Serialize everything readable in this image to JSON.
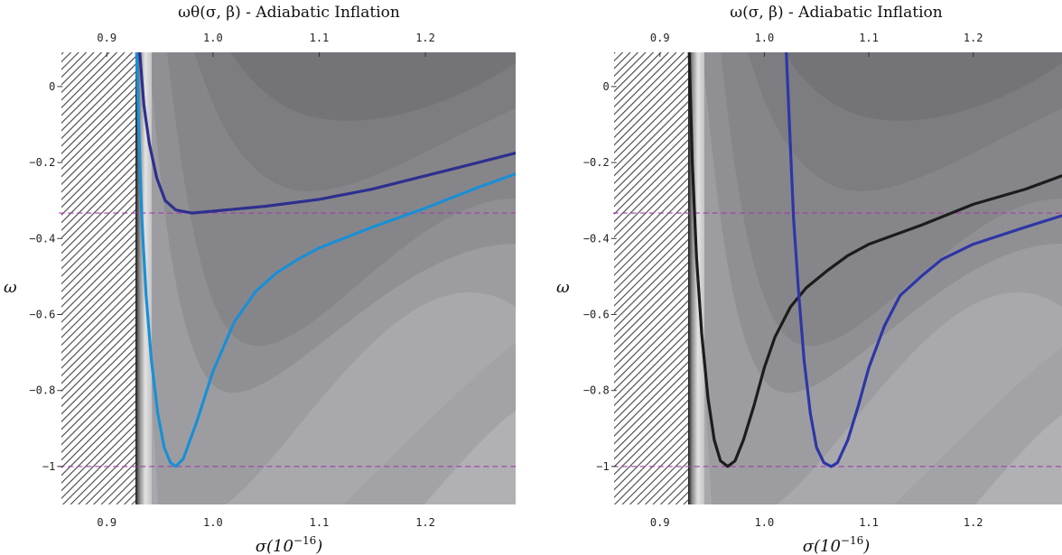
{
  "chart_data": [
    {
      "type": "line",
      "title": "ωθ(σ, β) - Adiabatic Inflation",
      "xlabel": "σ(10",
      "xlabel_exp": "−16",
      "xlabel_close": ")",
      "ylabel": "ω",
      "xlim": [
        0.855,
        1.285
      ],
      "ylim": [
        -1.1,
        0.09
      ],
      "xticks": [
        {
          "value": 0.9,
          "label": "0.9"
        },
        {
          "value": 1.0,
          "label": "1.0"
        },
        {
          "value": 1.1,
          "label": "1.1"
        },
        {
          "value": 1.2,
          "label": "1.2"
        }
      ],
      "yticks": [
        {
          "value": 0.0,
          "label": "0"
        },
        {
          "value": -0.2,
          "label": "−0.2"
        },
        {
          "value": -0.4,
          "label": "−0.4"
        },
        {
          "value": -0.6,
          "label": "−0.6"
        },
        {
          "value": -0.8,
          "label": "−0.8"
        },
        {
          "value": -1.0,
          "label": "−1"
        }
      ],
      "excluded_region_x_max": 0.927,
      "reference_lines": [
        -0.333,
        -1.0
      ],
      "series": [
        {
          "color": "#2d2f8f",
          "points": [
            [
              0.931,
              0.09
            ],
            [
              0.935,
              -0.05
            ],
            [
              0.94,
              -0.15
            ],
            [
              0.947,
              -0.24
            ],
            [
              0.955,
              -0.3
            ],
            [
              0.965,
              -0.325
            ],
            [
              0.98,
              -0.333
            ],
            [
              1.0,
              -0.328
            ],
            [
              1.05,
              -0.315
            ],
            [
              1.1,
              -0.297
            ],
            [
              1.15,
              -0.27
            ],
            [
              1.2,
              -0.235
            ],
            [
              1.25,
              -0.2
            ],
            [
              1.285,
              -0.175
            ]
          ]
        },
        {
          "color": "#1a8fd6",
          "points": [
            [
              0.928,
              0.09
            ],
            [
              0.93,
              -0.1
            ],
            [
              0.933,
              -0.35
            ],
            [
              0.937,
              -0.55
            ],
            [
              0.942,
              -0.72
            ],
            [
              0.948,
              -0.86
            ],
            [
              0.954,
              -0.95
            ],
            [
              0.96,
              -0.99
            ],
            [
              0.965,
              -1.0
            ],
            [
              0.972,
              -0.98
            ],
            [
              0.985,
              -0.88
            ],
            [
              1.0,
              -0.75
            ],
            [
              1.02,
              -0.62
            ],
            [
              1.04,
              -0.54
            ],
            [
              1.06,
              -0.49
            ],
            [
              1.08,
              -0.455
            ],
            [
              1.1,
              -0.425
            ],
            [
              1.15,
              -0.37
            ],
            [
              1.2,
              -0.32
            ],
            [
              1.25,
              -0.265
            ],
            [
              1.285,
              -0.23
            ]
          ]
        }
      ]
    },
    {
      "type": "line",
      "title": "ω(σ, β) - Adiabatic Inflation",
      "xlabel": "σ(10",
      "xlabel_exp": "−16",
      "xlabel_close": ")",
      "ylabel": "ω",
      "xlim": [
        0.855,
        1.285
      ],
      "ylim": [
        -1.1,
        0.09
      ],
      "xticks": [
        {
          "value": 0.9,
          "label": "0.9"
        },
        {
          "value": 1.0,
          "label": "1.0"
        },
        {
          "value": 1.1,
          "label": "1.1"
        },
        {
          "value": 1.2,
          "label": "1.2"
        }
      ],
      "yticks": [
        {
          "value": 0.0,
          "label": "0"
        },
        {
          "value": -0.2,
          "label": "−0.2"
        },
        {
          "value": -0.4,
          "label": "−0.4"
        },
        {
          "value": -0.6,
          "label": "−0.6"
        },
        {
          "value": -0.8,
          "label": "−0.8"
        },
        {
          "value": -1.0,
          "label": "−1"
        }
      ],
      "excluded_region_x_max": 0.927,
      "reference_lines": [
        -0.333,
        -1.0
      ],
      "series": [
        {
          "color": "#1c1c1c",
          "points": [
            [
              0.928,
              0.09
            ],
            [
              0.931,
              -0.2
            ],
            [
              0.935,
              -0.45
            ],
            [
              0.94,
              -0.65
            ],
            [
              0.946,
              -0.82
            ],
            [
              0.952,
              -0.93
            ],
            [
              0.958,
              -0.985
            ],
            [
              0.965,
              -1.0
            ],
            [
              0.972,
              -0.985
            ],
            [
              0.98,
              -0.93
            ],
            [
              0.99,
              -0.84
            ],
            [
              1.0,
              -0.74
            ],
            [
              1.01,
              -0.66
            ],
            [
              1.025,
              -0.58
            ],
            [
              1.04,
              -0.53
            ],
            [
              1.06,
              -0.485
            ],
            [
              1.08,
              -0.445
            ],
            [
              1.1,
              -0.415
            ],
            [
              1.15,
              -0.365
            ],
            [
              1.2,
              -0.31
            ],
            [
              1.25,
              -0.27
            ],
            [
              1.285,
              -0.235
            ]
          ]
        },
        {
          "color": "#2e36a6",
          "points": [
            [
              1.021,
              0.09
            ],
            [
              1.024,
              -0.1
            ],
            [
              1.028,
              -0.35
            ],
            [
              1.033,
              -0.55
            ],
            [
              1.038,
              -0.72
            ],
            [
              1.044,
              -0.86
            ],
            [
              1.05,
              -0.95
            ],
            [
              1.057,
              -0.99
            ],
            [
              1.064,
              -1.0
            ],
            [
              1.07,
              -0.99
            ],
            [
              1.08,
              -0.93
            ],
            [
              1.09,
              -0.84
            ],
            [
              1.1,
              -0.74
            ],
            [
              1.115,
              -0.63
            ],
            [
              1.13,
              -0.55
            ],
            [
              1.15,
              -0.5
            ],
            [
              1.17,
              -0.455
            ],
            [
              1.2,
              -0.415
            ],
            [
              1.25,
              -0.37
            ],
            [
              1.285,
              -0.34
            ]
          ]
        }
      ]
    }
  ]
}
